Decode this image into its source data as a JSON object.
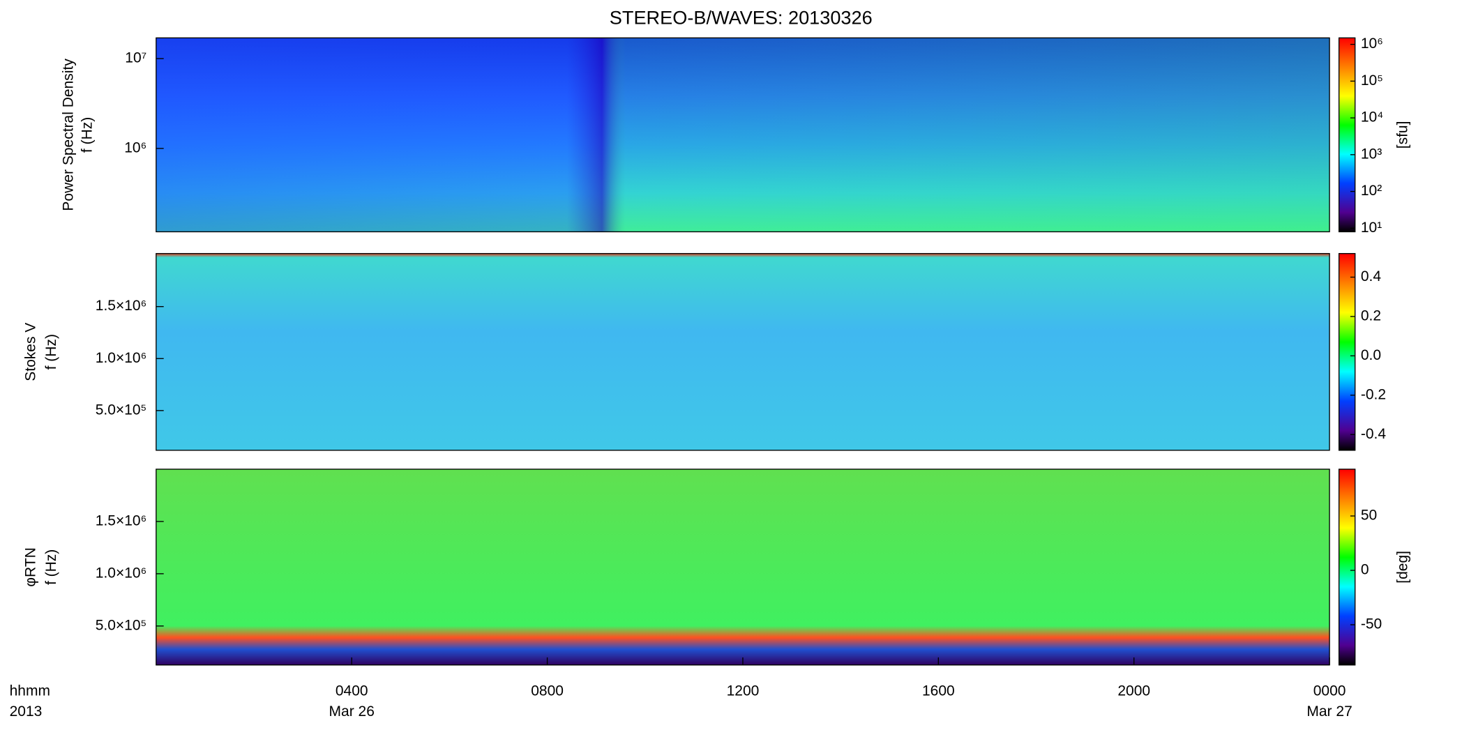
{
  "chart_data": [
    {
      "type": "spectrogram",
      "title": "STEREO-B/WAVES: 20130326",
      "ylabel": [
        "Power Spectral Density",
        "f (Hz)"
      ],
      "ylog": true,
      "ylim": [
        118000,
        17000000
      ],
      "yticks": [
        {
          "value": 1000000,
          "label": "10⁶"
        },
        {
          "value": 10000000,
          "label": "10⁷"
        }
      ],
      "colorbar": {
        "label": "[sfu]",
        "log": true,
        "lim": [
          8,
          1500000
        ],
        "ticks": [
          {
            "value": 10,
            "label": "10¹"
          },
          {
            "value": 100,
            "label": "10²"
          },
          {
            "value": 1000,
            "label": "10³"
          },
          {
            "value": 10000,
            "label": "10⁴"
          },
          {
            "value": 100000,
            "label": "10⁵"
          },
          {
            "value": 1000000,
            "label": "10⁶"
          }
        ]
      },
      "xlim": [
        0,
        24
      ]
    },
    {
      "type": "spectrogram",
      "ylabel": [
        "Stokes V",
        "f (Hz)"
      ],
      "ylog": false,
      "ylim": [
        118000,
        2010000
      ],
      "yticks": [
        {
          "value": 500000,
          "label": "5.0×10⁵"
        },
        {
          "value": 1000000,
          "label": "1.0×10⁶"
        },
        {
          "value": 1500000,
          "label": "1.5×10⁶"
        }
      ],
      "colorbar": {
        "label": "",
        "log": false,
        "lim": [
          -0.48,
          0.52
        ],
        "ticks": [
          -0.4,
          -0.2,
          {
            "value": 0,
            "label": "0.0"
          },
          0.2,
          0.4
        ]
      },
      "xlim": [
        0,
        24
      ]
    },
    {
      "type": "spectrogram",
      "ylabel": [
        "φRTN",
        "f (Hz)"
      ],
      "ylog": false,
      "ylim": [
        127000,
        2000000
      ],
      "yticks": [
        {
          "value": 500000,
          "label": "5.0×10⁵"
        },
        {
          "value": 1000000,
          "label": "1.0×10⁶"
        },
        {
          "value": 1500000,
          "label": "1.5×10⁶"
        }
      ],
      "colorbar": {
        "label": "[deg]",
        "log": false,
        "lim": [
          -87,
          93
        ],
        "ticks": [
          -50,
          0,
          50
        ]
      },
      "xlim": [
        0,
        24
      ],
      "xticks": [
        {
          "value": 4,
          "label": "0400"
        },
        {
          "value": 8,
          "label": "0800"
        },
        {
          "value": 12,
          "label": "1200"
        },
        {
          "value": 16,
          "label": "1600"
        },
        {
          "value": 20,
          "label": "2000"
        },
        {
          "value": 24,
          "label": "0000"
        }
      ],
      "xlabel": [
        "hhmm",
        "2013"
      ],
      "annotations": [
        {
          "text": "Mar 26",
          "x": 4
        },
        {
          "text": "Mar 27",
          "x": 24
        }
      ]
    }
  ]
}
